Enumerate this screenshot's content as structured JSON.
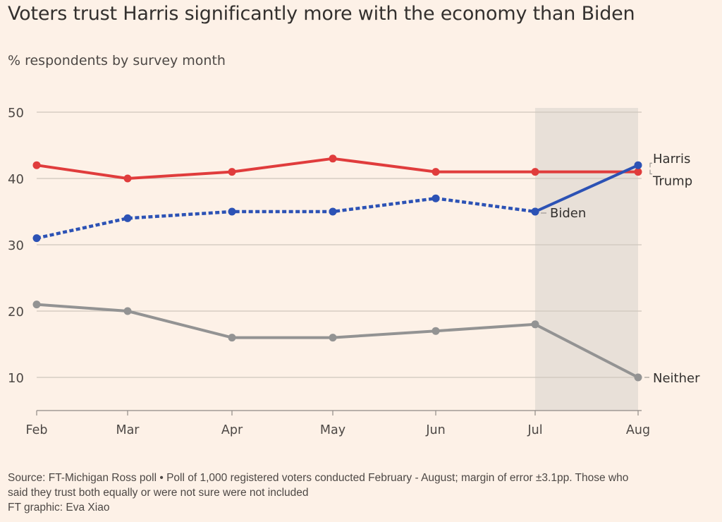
{
  "title": "Voters trust Harris significantly more with the economy than Biden",
  "subtitle": "% respondents by survey month",
  "footer": {
    "source": "Source: FT-Michigan Ross poll • Poll of 1,000 registered voters conducted February - August; margin of error ±3.1pp. Those who",
    "source_cont": "said they trust both equally or were not sure were not included",
    "credit": "FT graphic: Eva Xiao"
  },
  "chart_data": {
    "type": "line",
    "title": "Voters trust Harris significantly more with the economy than Biden",
    "subtitle": "% respondents by survey month",
    "xlabel": "",
    "ylabel": "% respondents",
    "x": [
      "Feb",
      "Mar",
      "Apr",
      "May",
      "Jun",
      "Jul",
      "Aug"
    ],
    "yticks": [
      10,
      20,
      30,
      40,
      50
    ],
    "ylim": [
      5,
      50.5
    ],
    "grid": true,
    "highlight_band": {
      "from": "Jul",
      "to": "Aug",
      "color": "#e8e0d8"
    },
    "series": [
      {
        "name": "Trump",
        "label": "Trump",
        "color": "#e03c3c",
        "style": "solid",
        "values": [
          42,
          40,
          41,
          43,
          41,
          41,
          41
        ]
      },
      {
        "name": "Biden",
        "label": "Biden",
        "color": "#2c52b5",
        "style": "dotted",
        "values": [
          31,
          34,
          35,
          35,
          37,
          35,
          null
        ]
      },
      {
        "name": "Harris",
        "label": "Harris",
        "color": "#2c52b5",
        "style": "solid",
        "values": [
          null,
          null,
          null,
          null,
          null,
          35,
          42
        ]
      },
      {
        "name": "Neither",
        "label": "Neither",
        "color": "#939393",
        "style": "solid",
        "values": [
          21,
          20,
          16,
          16,
          17,
          18,
          10
        ]
      }
    ]
  }
}
